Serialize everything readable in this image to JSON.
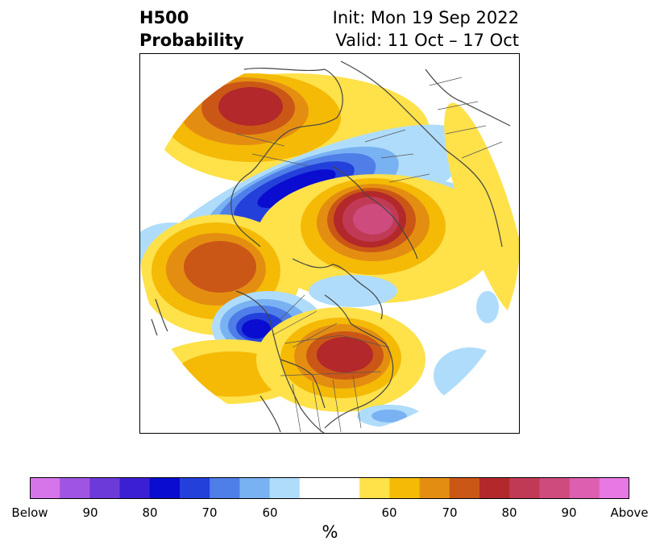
{
  "title": {
    "left_line1": "H500",
    "left_line2": "Probability",
    "right_line1": "Init: Mon 19 Sep 2022",
    "right_line2": "Valid: 11 Oct – 17 Oct"
  },
  "colorbar": {
    "colors": [
      "#d674ea",
      "#9f55e2",
      "#6b3ad9",
      "#3b1fd3",
      "#0a0ccf",
      "#2440db",
      "#4f7ee8",
      "#79b2f3",
      "#afdcfb",
      "#ffffff",
      "#ffe14a",
      "#f4ba06",
      "#e48e11",
      "#cb5716",
      "#b3282a",
      "#c13a55",
      "#ce4b7e",
      "#dc5fb0",
      "#e878e3"
    ],
    "labels": [
      "Below",
      "90",
      "80",
      "70",
      "60",
      "60",
      "70",
      "80",
      "90",
      "Above"
    ],
    "unit": "%"
  },
  "map": {
    "colors": {
      "yellow": "#ffe14a",
      "gold": "#f4ba06",
      "orange": "#e48e11",
      "burnt": "#cb5716",
      "red": "#b3282a",
      "rose": "#c13a55",
      "pink": "#ce4b7e",
      "lblue": "#afdcfb",
      "sky": "#79b2f3",
      "mblue": "#4f7ee8",
      "blue": "#2440db",
      "dblue": "#0a0ccf",
      "land": "#444444",
      "ocean": "#ffffff"
    }
  }
}
